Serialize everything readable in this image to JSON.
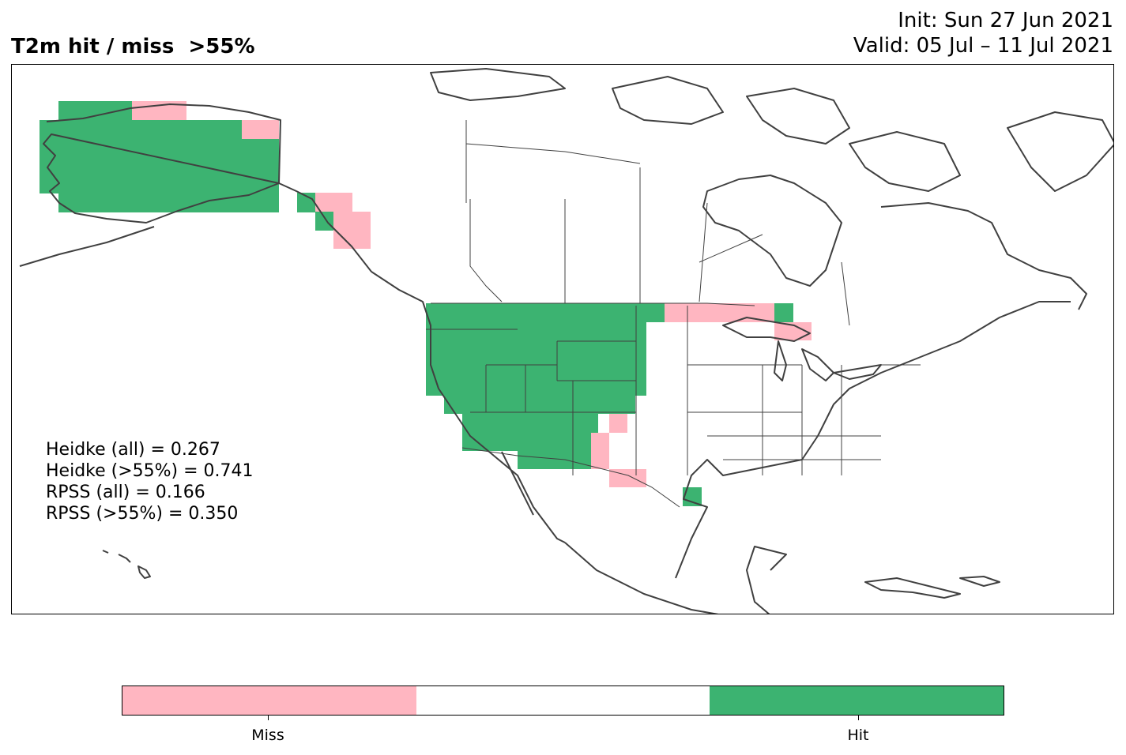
{
  "title": "T2m hit / miss  >55%",
  "init_line": "Init: Sun 27 Jun 2021",
  "valid_line": "Valid: 05 Jul – 11 Jul 2021",
  "scores": [
    "Heidke (all) = 0.267",
    "Heidke (>55%) = 0.741",
    "RPSS (all) = 0.166",
    "RPSS (>55%) = 0.350"
  ],
  "colors": {
    "hit": "#3cb371",
    "miss": "#ffb6c1",
    "neutral": "#ffffff",
    "coast": "#404040"
  },
  "colorbar": {
    "left_label": "Miss",
    "right_label": "Hit"
  }
}
